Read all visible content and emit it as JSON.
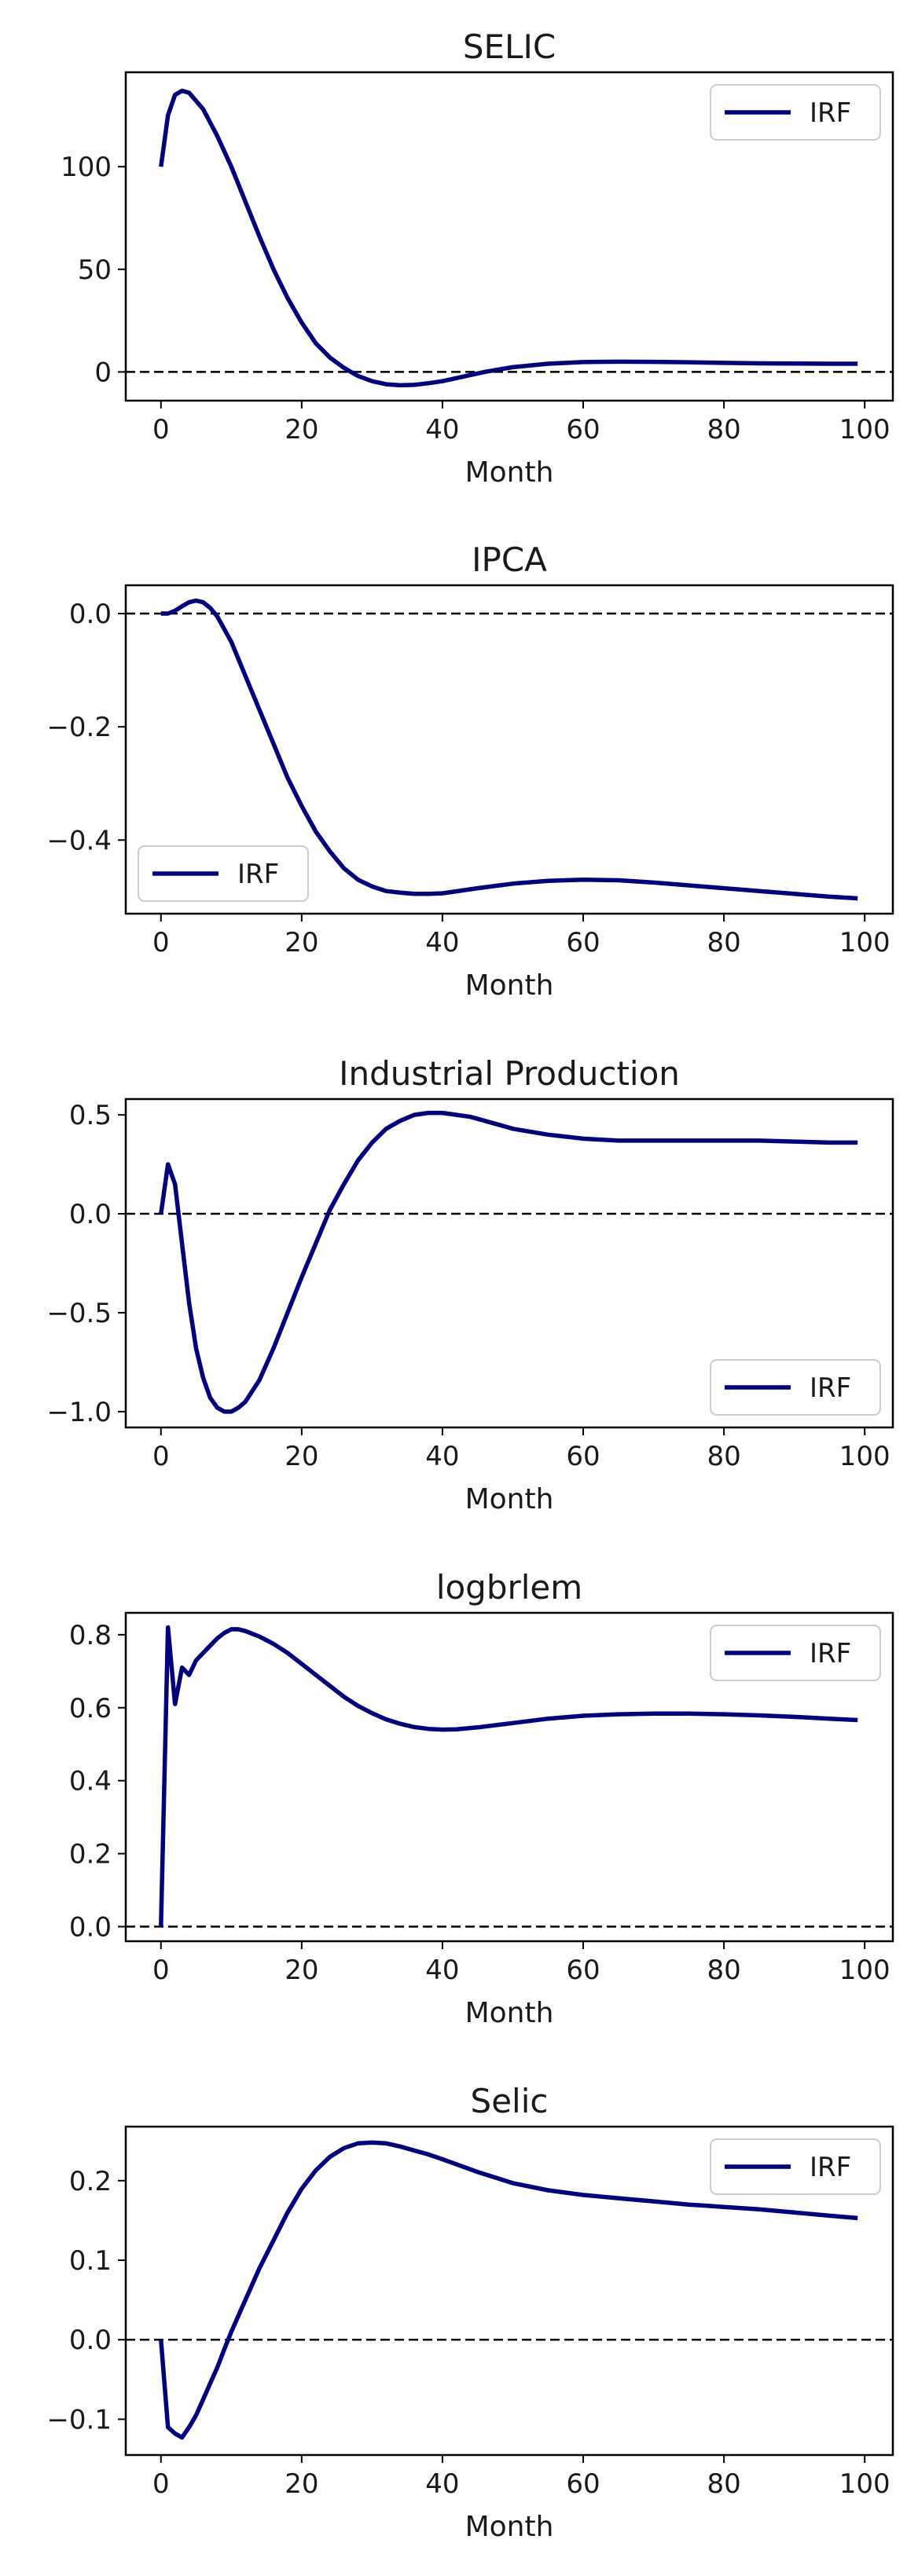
{
  "chart_data": [
    {
      "type": "line",
      "title": "SELIC",
      "xlabel": "Month",
      "ylabel": "",
      "xlim": [
        -5,
        104
      ],
      "ylim": [
        -14,
        146
      ],
      "xticks": [
        0,
        20,
        40,
        60,
        80,
        100
      ],
      "yticks": [
        0,
        50,
        100
      ],
      "yticklabels": [
        "0",
        "50",
        "100"
      ],
      "zero_line": true,
      "legend": "top-right",
      "series": [
        {
          "name": "IRF",
          "color": "#000080",
          "x": [
            0,
            1,
            2,
            3,
            4,
            6,
            8,
            10,
            12,
            14,
            16,
            18,
            20,
            22,
            24,
            26,
            28,
            30,
            32,
            34,
            36,
            38,
            40,
            42,
            44,
            46,
            48,
            50,
            55,
            60,
            65,
            70,
            75,
            80,
            85,
            90,
            95,
            99
          ],
          "y": [
            100,
            125,
            135,
            137,
            136,
            128,
            115,
            100,
            83,
            66,
            50,
            36,
            24,
            14,
            7,
            2,
            -2,
            -4.5,
            -6,
            -6.5,
            -6.3,
            -5.5,
            -4.5,
            -3,
            -1.5,
            0,
            1.2,
            2.3,
            4,
            4.8,
            5,
            4.9,
            4.7,
            4.4,
            4.2,
            4.1,
            4,
            4
          ]
        }
      ]
    },
    {
      "type": "line",
      "title": "IPCA",
      "xlabel": "Month",
      "ylabel": "",
      "xlim": [
        -5,
        104
      ],
      "ylim": [
        -0.53,
        0.05
      ],
      "xticks": [
        0,
        20,
        40,
        60,
        80,
        100
      ],
      "yticks": [
        0,
        -0.2,
        -0.4
      ],
      "yticklabels": [
        "0.0",
        "−0.2",
        "−0.4"
      ],
      "zero_line": true,
      "legend": "bottom-left",
      "series": [
        {
          "name": "IRF",
          "color": "#000080",
          "x": [
            0,
            1,
            2,
            3,
            4,
            5,
            6,
            7,
            8,
            10,
            12,
            14,
            16,
            18,
            20,
            22,
            24,
            26,
            28,
            30,
            32,
            34,
            36,
            38,
            40,
            45,
            50,
            55,
            60,
            65,
            70,
            75,
            80,
            85,
            90,
            95,
            99
          ],
          "y": [
            0,
            0,
            0.005,
            0.013,
            0.02,
            0.023,
            0.02,
            0.01,
            -0.005,
            -0.05,
            -0.11,
            -0.17,
            -0.23,
            -0.29,
            -0.34,
            -0.385,
            -0.42,
            -0.45,
            -0.47,
            -0.482,
            -0.49,
            -0.493,
            -0.495,
            -0.495,
            -0.494,
            -0.485,
            -0.477,
            -0.472,
            -0.47,
            -0.471,
            -0.475,
            -0.48,
            -0.485,
            -0.49,
            -0.495,
            -0.5,
            -0.503
          ]
        }
      ]
    },
    {
      "type": "line",
      "title": "Industrial Production",
      "xlabel": "Month",
      "ylabel": "",
      "xlim": [
        -5,
        104
      ],
      "ylim": [
        -1.08,
        0.58
      ],
      "xticks": [
        0,
        20,
        40,
        60,
        80,
        100
      ],
      "yticks": [
        0.5,
        0,
        -0.5,
        -1.0
      ],
      "yticklabels": [
        "0.5",
        "0.0",
        "−0.5",
        "−1.0"
      ],
      "zero_line": true,
      "legend": "bottom-right",
      "series": [
        {
          "name": "IRF",
          "color": "#000080",
          "x": [
            0,
            1,
            2,
            3,
            4,
            5,
            6,
            7,
            8,
            9,
            10,
            11,
            12,
            14,
            16,
            18,
            20,
            22,
            24,
            26,
            28,
            30,
            32,
            34,
            36,
            38,
            40,
            42,
            44,
            46,
            48,
            50,
            55,
            60,
            65,
            70,
            75,
            80,
            85,
            90,
            95,
            99
          ],
          "y": [
            0,
            0.25,
            0.15,
            -0.15,
            -0.45,
            -0.68,
            -0.83,
            -0.93,
            -0.98,
            -1.0,
            -1.0,
            -0.98,
            -0.95,
            -0.84,
            -0.68,
            -0.5,
            -0.32,
            -0.15,
            0.02,
            0.15,
            0.27,
            0.36,
            0.43,
            0.47,
            0.5,
            0.51,
            0.51,
            0.5,
            0.49,
            0.47,
            0.45,
            0.43,
            0.4,
            0.38,
            0.37,
            0.37,
            0.37,
            0.37,
            0.37,
            0.365,
            0.36,
            0.36
          ]
        }
      ]
    },
    {
      "type": "line",
      "title": "logbrlem",
      "xlabel": "Month",
      "ylabel": "",
      "xlim": [
        -5,
        104
      ],
      "ylim": [
        -0.04,
        0.86
      ],
      "xticks": [
        0,
        20,
        40,
        60,
        80,
        100
      ],
      "yticks": [
        0.0,
        0.2,
        0.4,
        0.6,
        0.8
      ],
      "yticklabels": [
        "0.0",
        "0.2",
        "0.4",
        "0.6",
        "0.8"
      ],
      "zero_line": true,
      "legend": "top-right",
      "series": [
        {
          "name": "IRF",
          "color": "#000080",
          "x": [
            0,
            1,
            2,
            3,
            4,
            5,
            6,
            7,
            8,
            9,
            10,
            11,
            12,
            14,
            16,
            18,
            20,
            22,
            24,
            26,
            28,
            30,
            32,
            34,
            36,
            38,
            40,
            42,
            45,
            50,
            55,
            60,
            65,
            70,
            75,
            80,
            85,
            90,
            95,
            99
          ],
          "y": [
            0,
            0.82,
            0.61,
            0.71,
            0.69,
            0.73,
            0.75,
            0.77,
            0.79,
            0.805,
            0.815,
            0.815,
            0.81,
            0.795,
            0.775,
            0.75,
            0.72,
            0.69,
            0.66,
            0.63,
            0.605,
            0.585,
            0.568,
            0.556,
            0.547,
            0.542,
            0.54,
            0.541,
            0.546,
            0.558,
            0.57,
            0.578,
            0.582,
            0.584,
            0.584,
            0.582,
            0.579,
            0.575,
            0.57,
            0.566
          ]
        }
      ]
    },
    {
      "type": "line",
      "title": "Selic",
      "xlabel": "Month",
      "ylabel": "",
      "xlim": [
        -5,
        104
      ],
      "ylim": [
        -0.145,
        0.268
      ],
      "xticks": [
        0,
        20,
        40,
        60,
        80,
        100
      ],
      "yticks": [
        -0.1,
        0.0,
        0.1,
        0.2
      ],
      "yticklabels": [
        "−0.1",
        "0.0",
        "0.1",
        "0.2"
      ],
      "zero_line": true,
      "legend": "top-right",
      "series": [
        {
          "name": "IRF",
          "color": "#000080",
          "x": [
            0,
            1,
            2,
            3,
            4,
            5,
            6,
            7,
            8,
            9,
            10,
            12,
            14,
            16,
            18,
            20,
            22,
            24,
            26,
            28,
            30,
            32,
            34,
            36,
            38,
            40,
            45,
            50,
            55,
            60,
            65,
            70,
            75,
            80,
            85,
            90,
            95,
            99
          ],
          "y": [
            0,
            -0.11,
            -0.118,
            -0.123,
            -0.11,
            -0.095,
            -0.075,
            -0.055,
            -0.035,
            -0.012,
            0.01,
            0.05,
            0.09,
            0.125,
            0.16,
            0.19,
            0.213,
            0.23,
            0.241,
            0.247,
            0.248,
            0.247,
            0.243,
            0.238,
            0.233,
            0.227,
            0.211,
            0.197,
            0.188,
            0.182,
            0.178,
            0.174,
            0.17,
            0.167,
            0.164,
            0.16,
            0.156,
            0.153
          ]
        }
      ]
    }
  ]
}
